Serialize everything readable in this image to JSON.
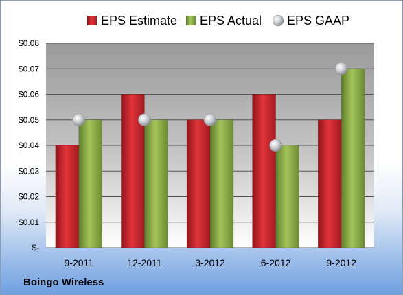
{
  "company_label": "Boingo Wireless",
  "colors": {
    "estimate": "#cc2a2f",
    "actual": "#8fb04a",
    "gaap": "#b8bcc2"
  },
  "chart_data": {
    "type": "bar",
    "categories": [
      "9-2011",
      "12-2011",
      "3-2012",
      "6-2012",
      "9-2012"
    ],
    "series": [
      {
        "name": "EPS Estimate",
        "kind": "bar",
        "values": [
          0.04,
          0.06,
          0.05,
          0.06,
          0.05
        ]
      },
      {
        "name": "EPS Actual",
        "kind": "bar",
        "values": [
          0.05,
          0.05,
          0.05,
          0.04,
          0.07
        ]
      },
      {
        "name": "EPS GAAP",
        "kind": "marker",
        "values": [
          0.05,
          0.05,
          0.05,
          0.04,
          0.07
        ]
      }
    ],
    "ylim": [
      0,
      0.08
    ],
    "yticks": [
      0,
      0.01,
      0.02,
      0.03,
      0.04,
      0.05,
      0.06,
      0.07,
      0.08
    ],
    "ytick_labels": [
      "$-",
      "$0.01",
      "$0.02",
      "$0.03",
      "$0.04",
      "$0.05",
      "$0.06",
      "$0.07",
      "$0.08"
    ],
    "grid": true,
    "legend": "top"
  }
}
